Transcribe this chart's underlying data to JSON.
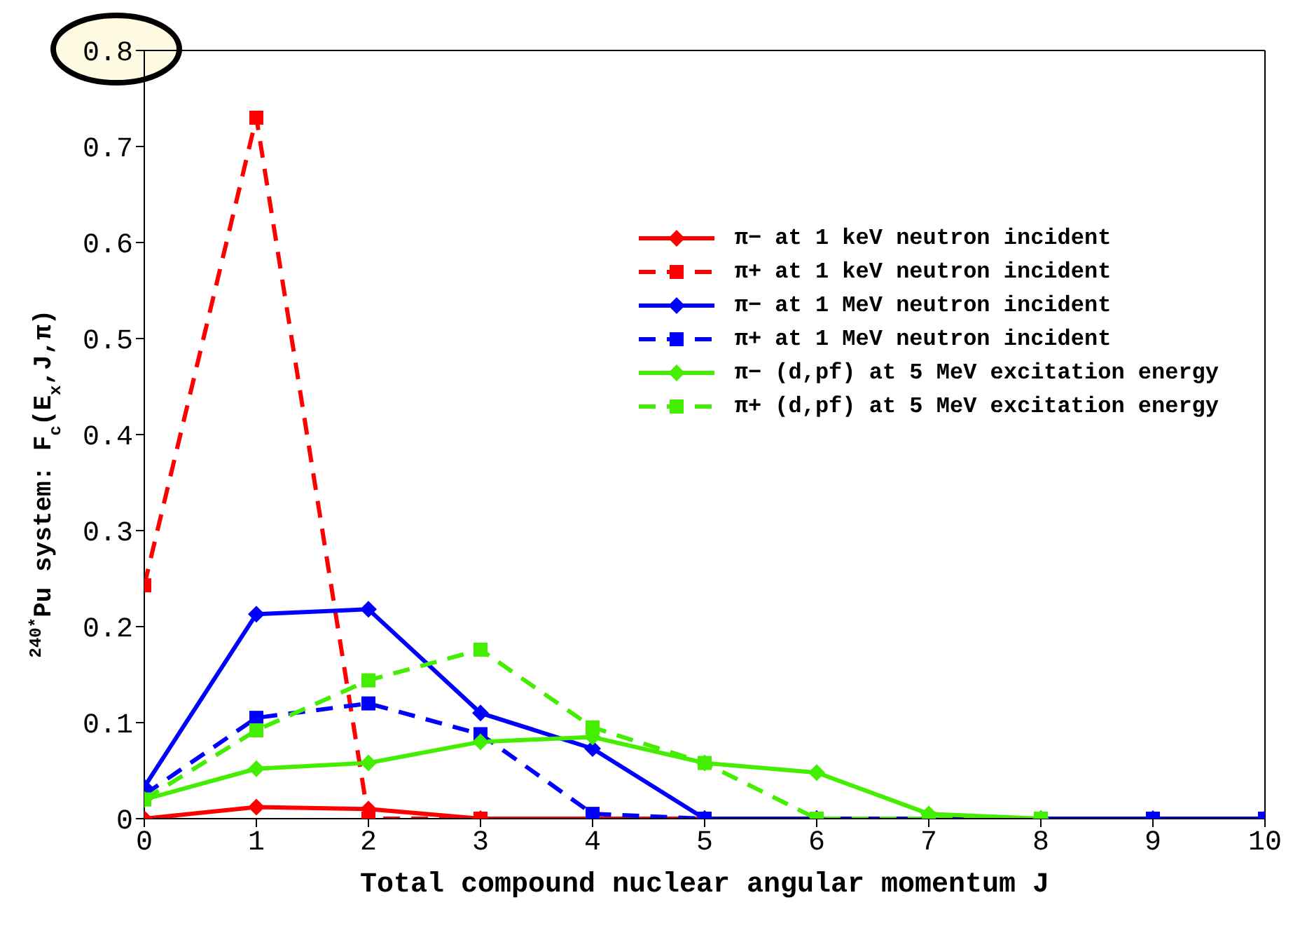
{
  "chart_data": {
    "type": "line",
    "xlabel": "Total compound nuclear angular momentum J",
    "ylabel": "$^{240*}$Pu system: F$_{c}$(E$_{x}$,J,π)",
    "x": [
      0,
      1,
      2,
      3,
      4,
      5,
      6,
      7,
      8,
      9,
      10
    ],
    "xlim": [
      0,
      10
    ],
    "xticks": [
      0,
      1,
      2,
      3,
      4,
      5,
      6,
      7,
      8,
      9,
      10
    ],
    "ylim": [
      0,
      0.8
    ],
    "yticks": [
      {
        "value": 0,
        "label": "0"
      },
      0.1,
      0.2,
      0.3,
      0.4,
      0.5,
      0.6,
      0.7,
      0.8
    ],
    "grid": false,
    "legend": "top right",
    "series": [
      {
        "name": "π− at 1 keV neutron incident",
        "color": "#ff0000",
        "marker": "diamond",
        "line_style": "solid",
        "values": [
          0,
          0.012,
          0.01,
          0,
          0,
          0,
          0,
          null,
          null,
          null,
          null
        ]
      },
      {
        "name": "π+ at 1 keV neutron incident",
        "color": "#ff0000",
        "marker": "square",
        "line_style": "dashed",
        "values": [
          0.243,
          0.73,
          0,
          0,
          0,
          0,
          0,
          null,
          null,
          null,
          null
        ]
      },
      {
        "name": "π− at 1 MeV neutron incident",
        "color": "#0000ff",
        "marker": "diamond",
        "line_style": "solid",
        "values": [
          0.033,
          0.213,
          0.218,
          0.11,
          0.073,
          0,
          0,
          0,
          0,
          0,
          0
        ]
      },
      {
        "name": "π+ at 1 MeV neutron incident",
        "color": "#0000ff",
        "marker": "square",
        "line_style": "dashed",
        "values": [
          0.025,
          0.105,
          0.12,
          0.088,
          0.005,
          0,
          0,
          0,
          0,
          0,
          0
        ]
      },
      {
        "name": "π− (d,pf) at 5 MeV excitation energy",
        "color": "#44ee00",
        "marker": "diamond",
        "line_style": "solid",
        "values": [
          0.02,
          0.052,
          0.058,
          0.08,
          0.085,
          0.058,
          0.048,
          0.005,
          0,
          null,
          null
        ]
      },
      {
        "name": "π+ (d,pf) at 5 MeV excitation energy",
        "color": "#44ee00",
        "marker": "square",
        "line_style": "dashed",
        "values": [
          0.02,
          0.092,
          0.144,
          0.176,
          0.095,
          0.058,
          0,
          0,
          0,
          null,
          null
        ]
      }
    ]
  }
}
